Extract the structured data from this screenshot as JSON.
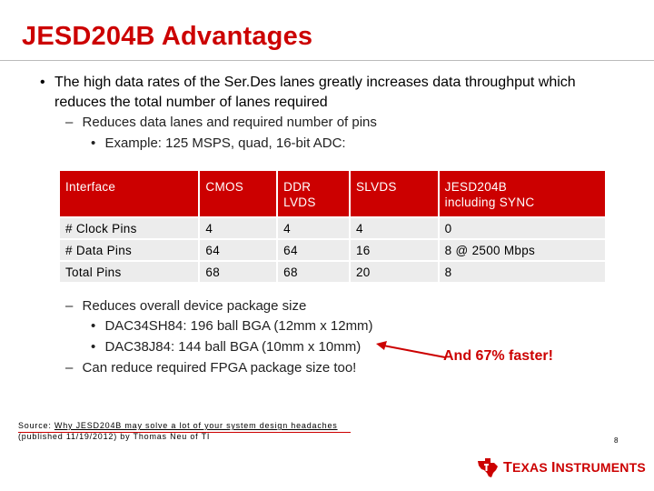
{
  "slide": {
    "title": "JESD204B Advantages",
    "bullet1": "The high data rates of the Ser.Des lanes greatly increases data throughput which reduces the total number of lanes required",
    "sub1": "Reduces data lanes and required number of pins",
    "subsub1": "Example: 125 MSPS, quad, 16-bit ADC:",
    "sub2": "Reduces overall device package size",
    "subsub2": "DAC34SH84: 196 ball BGA (12mm x 12mm)",
    "subsub3": "DAC38J84: 144 ball BGA (10mm x 10mm)",
    "sub3": "Can reduce required FPGA package size too!",
    "callout": "And 67% faster!",
    "bullet_symbol": "•",
    "dash_symbol": "–"
  },
  "table": {
    "headers": [
      "Interface",
      "CMOS",
      "DDR\nLVDS",
      "SLVDS",
      "JESD204B\nincluding SYNC"
    ],
    "rows": [
      [
        "# Clock Pins",
        "4",
        "4",
        "4",
        "0"
      ],
      [
        "# Data Pins",
        "64",
        "64",
        "16",
        "8 @ 2500 Mbps"
      ],
      [
        "Total Pins",
        "68",
        "68",
        "20",
        "8"
      ]
    ]
  },
  "footer": {
    "source_prefix": "Source: ",
    "source_link": "Why JESD204B may solve a lot of your system design headaches",
    "source_line2": "(published 11/19/2012) by Thomas Neu of TI",
    "page_number": "8",
    "logo_text_t": "T",
    "logo_text_exas": "EXAS ",
    "logo_text_i": "I",
    "logo_text_nstruments": "NSTRUMENTS"
  },
  "colors": {
    "accent": "#cc0000",
    "table_body": "#ececec"
  }
}
